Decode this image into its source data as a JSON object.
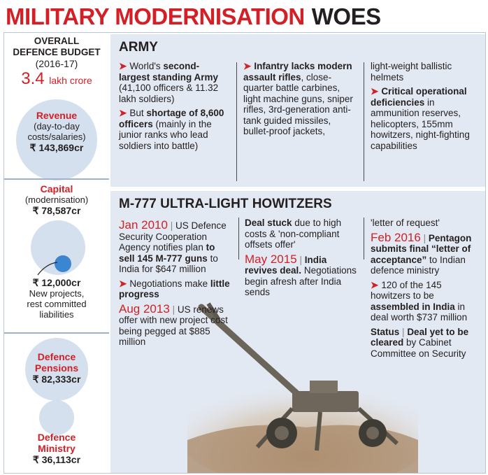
{
  "headline": {
    "red": "MILITARY MODERNISATION",
    "black": "WOES"
  },
  "budget": {
    "title_line1": "OVERALL",
    "title_line2": "DEFENCE BUDGET",
    "year": "(2016-17)",
    "total_value": "3.4",
    "total_unit": "lakh crore",
    "revenue_label": "Revenue",
    "revenue_desc_1": "(day-to-day",
    "revenue_desc_2": "costs/salaries)",
    "revenue_amount": "₹ 143,869cr",
    "capital_label": "Capital",
    "capital_desc": "(modernisation)",
    "capital_amount": "₹ 78,587cr",
    "new_projects_amount": "₹ 12,000cr",
    "new_projects_desc_1": "New projects,",
    "new_projects_desc_2": "rest committed",
    "new_projects_desc_3": "liabilities",
    "pensions_label_1": "Defence",
    "pensions_label_2": "Pensions",
    "pensions_amount": "₹ 82,333cr",
    "ministry_label_1": "Defence",
    "ministry_label_2": "Ministry",
    "ministry_amount": "₹ 36,113cr"
  },
  "army": {
    "title": "ARMY",
    "col1": {
      "b1_pre": "World's ",
      "b1_bold": "second-largest standing Army",
      "b1_post": " (41,100 officers & 11.32 lakh soldiers)",
      "b2_pre": "But ",
      "b2_bold": "shortage of 8,600 officers",
      "b2_post": " (mainly in the junior ranks who lead soldiers into battle)"
    },
    "col2": {
      "b1_bold": "Infantry lacks modern assault rifles",
      "b1_post": ", close-quarter battle carbines, light machine guns, sniper rifles, 3rd-generation anti-tank guided missiles, bullet-proof jackets,"
    },
    "col3": {
      "cont": "light-weight ballistic helmets",
      "b1_bold": "Critical operational deficiencies",
      "b1_post": " in ammunition reserves, helicopters, 155mm howitzers, night-fighting capabilities"
    }
  },
  "m777": {
    "title": "M-777 ULTRA-LIGHT HOWITZERS",
    "col1": {
      "date1": "Jan 2010",
      "sep": "|",
      "t1_pre": "US Defence Security Cooperation Agency notifies plan ",
      "t1_bold": "to sell 145 M-777 guns",
      "t1_post": " to India for $647 million",
      "b1_pre": "Negotiations make ",
      "b1_bold": "little progress",
      "date2": "Aug 2013",
      "t2": "US renews offer with new project cost being pegged at $885 million"
    },
    "col2": {
      "t1_bold": "Deal stuck",
      "t1_post": " due to high costs & 'non-compliant offsets offer'",
      "date": "May 2015",
      "t2_bold": "India revives deal.",
      "t2_post": "Negotiations begin afresh after India sends"
    },
    "col3": {
      "cont": "'letter of request'",
      "date": "Feb 2016",
      "t1_bold": "Pentagon submits final “letter of acceptance”",
      "t1_post": " to Indian defence ministry",
      "b1_pre": "120 of the 145 howitzers to be ",
      "b1_bold": "assembled in India",
      "b1_post": " in deal worth $737 million",
      "status_label": "Status",
      "status_bold": "Deal yet to be cleared",
      "status_post": " by Cabinet Committee on Security"
    }
  },
  "colors": {
    "accent_red": "#d32027",
    "circle_blue": "#d5e0ee",
    "dot_blue": "#3a86d1",
    "panel": "#e3e9f2"
  },
  "icons": {
    "bullet": "triangle-arrow-icon",
    "gun": "howitzer-image"
  }
}
